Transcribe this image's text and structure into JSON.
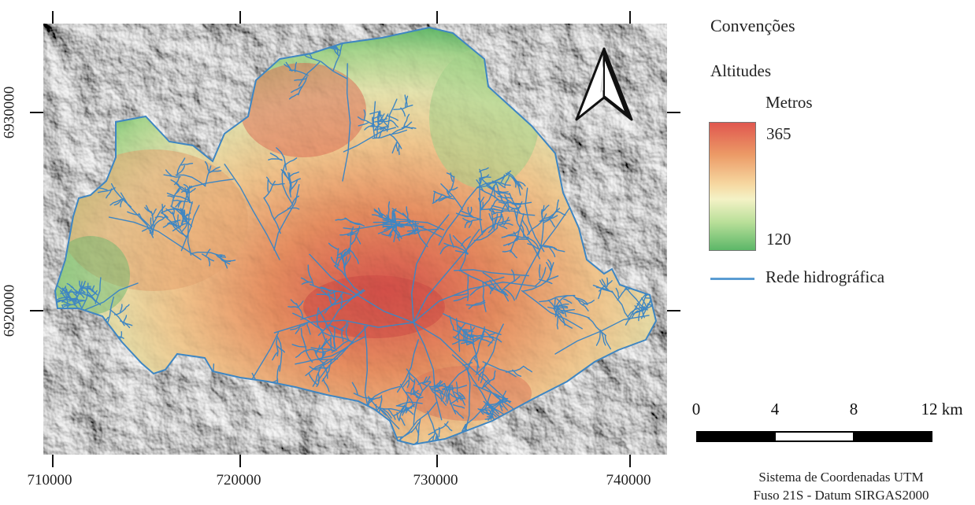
{
  "axes": {
    "x_ticks": [
      "710000",
      "720000",
      "730000",
      "740000"
    ],
    "y_ticks": [
      "6930000",
      "6920000"
    ]
  },
  "legend": {
    "title": "Convenções",
    "altitude_heading": "Altitudes",
    "unit": "Metros",
    "max_value": "365",
    "min_value": "120",
    "river_label": "Rede hidrográfica",
    "colors": {
      "high": "#e0574f",
      "mid": "#f4f2c6",
      "low": "#5cb768",
      "river": "#5a9cd2"
    }
  },
  "scale_bar": {
    "labels": [
      "0",
      "4",
      "8",
      "12 km"
    ]
  },
  "crs": {
    "line1": "Sistema de Coordenadas UTM",
    "line2": "Fuso 21S - Datum SIRGAS2000"
  },
  "north_arrow": {
    "icon": "north-arrow-icon"
  }
}
